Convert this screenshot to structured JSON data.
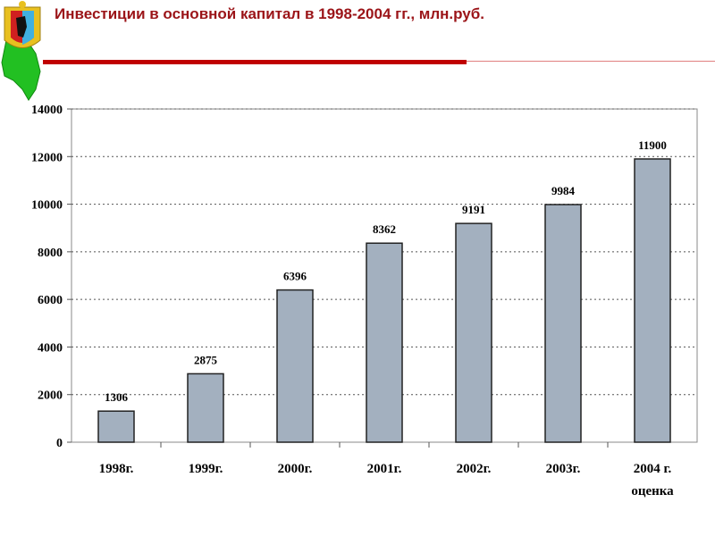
{
  "title": "Инвестиции в основной капитал в 1998-2004 гг., млн.руб.",
  "colors": {
    "title": "#9b1418",
    "bar": "#a3b0bf",
    "rule": "#c00000"
  },
  "chart_data": {
    "type": "bar",
    "title": "Инвестиции в основной капитал в 1998-2004 гг., млн.руб.",
    "categories": [
      "1998г.",
      "1999г.",
      "2000г.",
      "2001г.",
      "2002г.",
      "2003г.",
      "2004 г. оценка"
    ],
    "category_lines": [
      [
        "1998г."
      ],
      [
        "1999г."
      ],
      [
        "2000г."
      ],
      [
        "2001г."
      ],
      [
        "2002г."
      ],
      [
        "2003г."
      ],
      [
        "2004 г.",
        "оценка"
      ]
    ],
    "values": [
      1306,
      2875,
      6396,
      8362,
      9191,
      9984,
      11900
    ],
    "data_labels": [
      "1306",
      "2875",
      "6396",
      "8362",
      "9191",
      "9984",
      "11900"
    ],
    "ylim": [
      0,
      14000
    ],
    "yticks": [
      0,
      2000,
      4000,
      6000,
      8000,
      10000,
      12000,
      14000
    ],
    "ytick_labels": [
      "0",
      "2000",
      "4000",
      "6000",
      "8000",
      "10000",
      "12000",
      "14000"
    ],
    "grid": true,
    "xlabel": "",
    "ylabel": ""
  }
}
